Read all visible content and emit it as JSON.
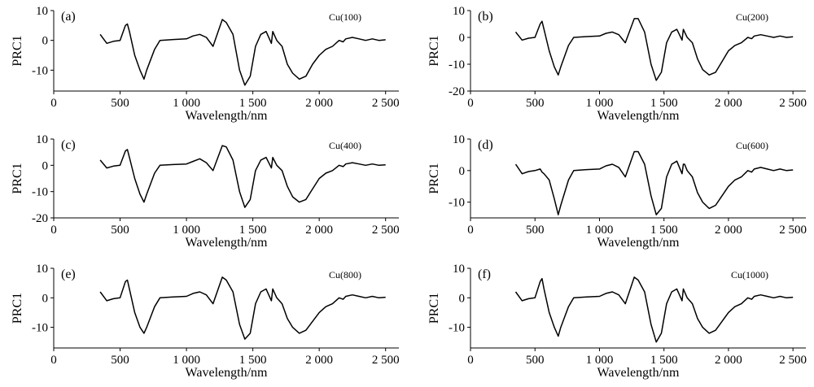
{
  "chart_data": [
    {
      "type": "line",
      "panel_label": "(a)",
      "sample_label": "Cu(100)",
      "xlabel": "Wavelength/nm",
      "ylabel": "PRC1",
      "xlim": [
        0,
        2600
      ],
      "ylim": [
        -17,
        10
      ],
      "xticks": [
        0,
        500,
        1000,
        1500,
        2000,
        2500
      ],
      "xtick_labels": [
        "0",
        "500",
        "1 000",
        "1 500",
        "2 000",
        "2 500"
      ],
      "yticks": [
        10,
        0,
        -10
      ],
      "ytick_labels": [
        "10",
        "0",
        "-10"
      ],
      "series": [
        {
          "x": [
            350,
            400,
            450,
            500,
            540,
            555,
            570,
            610,
            650,
            680,
            700,
            760,
            800,
            900,
            1000,
            1050,
            1100,
            1150,
            1200,
            1270,
            1300,
            1350,
            1400,
            1440,
            1480,
            1520,
            1560,
            1600,
            1640,
            1650,
            1660,
            1680,
            1720,
            1760,
            1800,
            1850,
            1900,
            1950,
            2000,
            2050,
            2100,
            2150,
            2180,
            2200,
            2250,
            2300,
            2350,
            2400,
            2450,
            2500
          ],
          "y": [
            2,
            -1,
            -0.3,
            0,
            5,
            5.5,
            3,
            -5,
            -10,
            -13,
            -10,
            -3,
            0,
            0.3,
            0.5,
            1.5,
            2,
            1,
            -2,
            7,
            6,
            2,
            -10,
            -15,
            -12,
            -2,
            2,
            3,
            -1,
            3,
            2,
            0,
            -2,
            -8,
            -11,
            -13,
            -12,
            -8,
            -5,
            -3,
            -2,
            0,
            -0.5,
            0.5,
            1,
            0.5,
            0,
            0.5,
            0,
            0.2
          ]
        }
      ]
    },
    {
      "type": "line",
      "panel_label": "(b)",
      "sample_label": "Cu(200)",
      "xlabel": "Wavelength/nm",
      "ylabel": "PRC1",
      "xlim": [
        0,
        2600
      ],
      "ylim": [
        -20,
        10
      ],
      "xticks": [
        0,
        500,
        1000,
        1500,
        2000,
        2500
      ],
      "xtick_labels": [
        "0",
        "500",
        "1 000",
        "1 500",
        "2 000",
        "2 500"
      ],
      "yticks": [
        10,
        0,
        -10,
        -20
      ],
      "ytick_labels": [
        "10",
        "0",
        "-10",
        "-20"
      ],
      "series": [
        {
          "x": [
            350,
            400,
            450,
            500,
            540,
            555,
            570,
            610,
            650,
            680,
            700,
            760,
            800,
            900,
            1000,
            1050,
            1100,
            1150,
            1200,
            1270,
            1300,
            1350,
            1400,
            1440,
            1480,
            1520,
            1560,
            1600,
            1640,
            1650,
            1660,
            1680,
            1720,
            1760,
            1800,
            1850,
            1900,
            1950,
            2000,
            2050,
            2100,
            2150,
            2180,
            2200,
            2250,
            2300,
            2350,
            2400,
            2450,
            2500
          ],
          "y": [
            2,
            -1,
            -0.3,
            0,
            5,
            6,
            3,
            -5,
            -11,
            -14,
            -11,
            -3,
            0,
            0.3,
            0.5,
            1.5,
            2,
            1,
            -2,
            7,
            7,
            2,
            -10,
            -16,
            -13,
            -2,
            2,
            3,
            -1,
            3,
            2,
            0,
            -2,
            -8,
            -12,
            -14,
            -13,
            -9,
            -5,
            -3,
            -2,
            0,
            -0.5,
            0.5,
            1,
            0.5,
            0,
            0.5,
            0,
            0.2
          ]
        }
      ]
    },
    {
      "type": "line",
      "panel_label": "(c)",
      "sample_label": "Cu(400)",
      "xlabel": "Wavelength/nm",
      "ylabel": "PRC1",
      "xlim": [
        0,
        2600
      ],
      "ylim": [
        -20,
        10
      ],
      "xticks": [
        0,
        500,
        1000,
        1500,
        2000,
        2500
      ],
      "xtick_labels": [
        "0",
        "500",
        "1 000",
        "1 500",
        "2 000",
        "2 500"
      ],
      "yticks": [
        10,
        0,
        -10,
        -20
      ],
      "ytick_labels": [
        "10",
        "0",
        "-10",
        "-20"
      ],
      "series": [
        {
          "x": [
            350,
            400,
            450,
            500,
            540,
            555,
            570,
            610,
            650,
            680,
            700,
            760,
            800,
            900,
            1000,
            1050,
            1100,
            1150,
            1200,
            1270,
            1300,
            1350,
            1400,
            1440,
            1480,
            1520,
            1560,
            1600,
            1640,
            1650,
            1660,
            1680,
            1720,
            1760,
            1800,
            1850,
            1900,
            1950,
            2000,
            2050,
            2100,
            2150,
            2180,
            2200,
            2250,
            2300,
            2350,
            2400,
            2450,
            2500
          ],
          "y": [
            2,
            -1,
            -0.3,
            0,
            5.5,
            6,
            3,
            -5,
            -11,
            -14,
            -11,
            -3,
            0,
            0.3,
            0.5,
            1.5,
            2.5,
            1,
            -2,
            7.5,
            7,
            2,
            -10,
            -16,
            -13,
            -2,
            2,
            3,
            -1,
            3,
            2,
            0,
            -2,
            -8,
            -12,
            -14,
            -13,
            -9,
            -5,
            -3,
            -2,
            0,
            -0.5,
            0.5,
            1,
            0.5,
            0,
            0.5,
            0,
            0.2
          ]
        }
      ]
    },
    {
      "type": "line",
      "panel_label": "(d)",
      "sample_label": "Cu(600)",
      "xlabel": "Wavelength/nm",
      "ylabel": "PRC1",
      "xlim": [
        0,
        2600
      ],
      "ylim": [
        -15,
        10
      ],
      "xticks": [
        0,
        500,
        1000,
        1500,
        2000,
        2500
      ],
      "xtick_labels": [
        "0",
        "500",
        "1 000",
        "1 500",
        "2 000",
        "2 500"
      ],
      "yticks": [
        10,
        0,
        -10
      ],
      "ytick_labels": [
        "10",
        "0",
        "-10"
      ],
      "series": [
        {
          "x": [
            350,
            400,
            450,
            500,
            540,
            555,
            570,
            610,
            650,
            680,
            700,
            760,
            800,
            900,
            1000,
            1050,
            1100,
            1150,
            1200,
            1270,
            1300,
            1350,
            1400,
            1440,
            1480,
            1520,
            1560,
            1600,
            1640,
            1650,
            1660,
            1680,
            1720,
            1760,
            1800,
            1850,
            1900,
            1950,
            2000,
            2050,
            2100,
            2150,
            2180,
            2200,
            2250,
            2300,
            2350,
            2400,
            2450,
            2500
          ],
          "y": [
            2,
            -1,
            -0.3,
            0,
            0.5,
            -0.5,
            -1,
            -3,
            -9,
            -14,
            -11,
            -3,
            0,
            0.3,
            0.5,
            1.5,
            2,
            1,
            -2,
            6,
            6,
            2,
            -8,
            -14,
            -12,
            -2,
            2,
            3,
            -1,
            2,
            2,
            0,
            -2,
            -7,
            -10,
            -12,
            -11,
            -8,
            -5,
            -3,
            -2,
            0,
            -0.5,
            0.5,
            1,
            0.5,
            0,
            0.5,
            0,
            0.2
          ]
        }
      ]
    },
    {
      "type": "line",
      "panel_label": "(e)",
      "sample_label": "Cu(800)",
      "xlabel": "Wavelength/nm",
      "ylabel": "PRC1",
      "xlim": [
        0,
        2600
      ],
      "ylim": [
        -17,
        10
      ],
      "xticks": [
        0,
        500,
        1000,
        1500,
        2000,
        2500
      ],
      "xtick_labels": [
        "0",
        "500",
        "1 000",
        "1 500",
        "2 000",
        "2 500"
      ],
      "yticks": [
        10,
        0,
        -10
      ],
      "ytick_labels": [
        "10",
        "0",
        "-10"
      ],
      "series": [
        {
          "x": [
            350,
            400,
            450,
            500,
            540,
            555,
            570,
            610,
            650,
            680,
            700,
            760,
            800,
            900,
            1000,
            1050,
            1100,
            1150,
            1200,
            1270,
            1300,
            1350,
            1400,
            1440,
            1480,
            1520,
            1560,
            1600,
            1640,
            1650,
            1660,
            1680,
            1720,
            1760,
            1800,
            1850,
            1900,
            1950,
            2000,
            2050,
            2100,
            2150,
            2180,
            2200,
            2250,
            2300,
            2350,
            2400,
            2450,
            2500
          ],
          "y": [
            2,
            -1,
            -0.3,
            0,
            5.5,
            6,
            3,
            -5,
            -10,
            -12,
            -10,
            -3,
            0,
            0.3,
            0.5,
            1.5,
            2,
            1,
            -2,
            7,
            6,
            2,
            -9,
            -14,
            -12,
            -2,
            2,
            3,
            -1,
            3,
            2,
            0,
            -2,
            -7,
            -10,
            -12,
            -11,
            -8,
            -5,
            -3,
            -2,
            0,
            -0.5,
            0.5,
            1,
            0.5,
            0,
            0.5,
            0,
            0.2
          ]
        }
      ]
    },
    {
      "type": "line",
      "panel_label": "(f)",
      "sample_label": "Cu(1000)",
      "xlabel": "Wavelength/nm",
      "ylabel": "PRC1",
      "xlim": [
        0,
        2600
      ],
      "ylim": [
        -17,
        10
      ],
      "xticks": [
        0,
        500,
        1000,
        1500,
        2000,
        2500
      ],
      "xtick_labels": [
        "0",
        "500",
        "1 000",
        "1 500",
        "2 000",
        "2 500"
      ],
      "yticks": [
        10,
        0,
        -10
      ],
      "ytick_labels": [
        "10",
        "0",
        "-10"
      ],
      "series": [
        {
          "x": [
            350,
            400,
            450,
            500,
            540,
            555,
            570,
            610,
            650,
            680,
            700,
            760,
            800,
            900,
            1000,
            1050,
            1100,
            1150,
            1200,
            1270,
            1300,
            1350,
            1400,
            1440,
            1480,
            1520,
            1560,
            1600,
            1640,
            1650,
            1660,
            1680,
            1720,
            1760,
            1800,
            1850,
            1900,
            1950,
            2000,
            2050,
            2100,
            2150,
            2180,
            2200,
            2250,
            2300,
            2350,
            2400,
            2450,
            2500
          ],
          "y": [
            2,
            -1,
            -0.3,
            0,
            5.5,
            6.5,
            3,
            -5,
            -10,
            -13,
            -10,
            -3,
            0,
            0.3,
            0.5,
            1.5,
            2,
            1,
            -2,
            7,
            6,
            2,
            -9,
            -15,
            -12,
            -2,
            2,
            3,
            -1,
            3,
            2,
            0,
            -2,
            -7,
            -10,
            -12,
            -11,
            -8,
            -5,
            -3,
            -2,
            0,
            -0.5,
            0.5,
            1,
            0.5,
            0,
            0.5,
            0,
            0.2
          ]
        }
      ]
    }
  ]
}
